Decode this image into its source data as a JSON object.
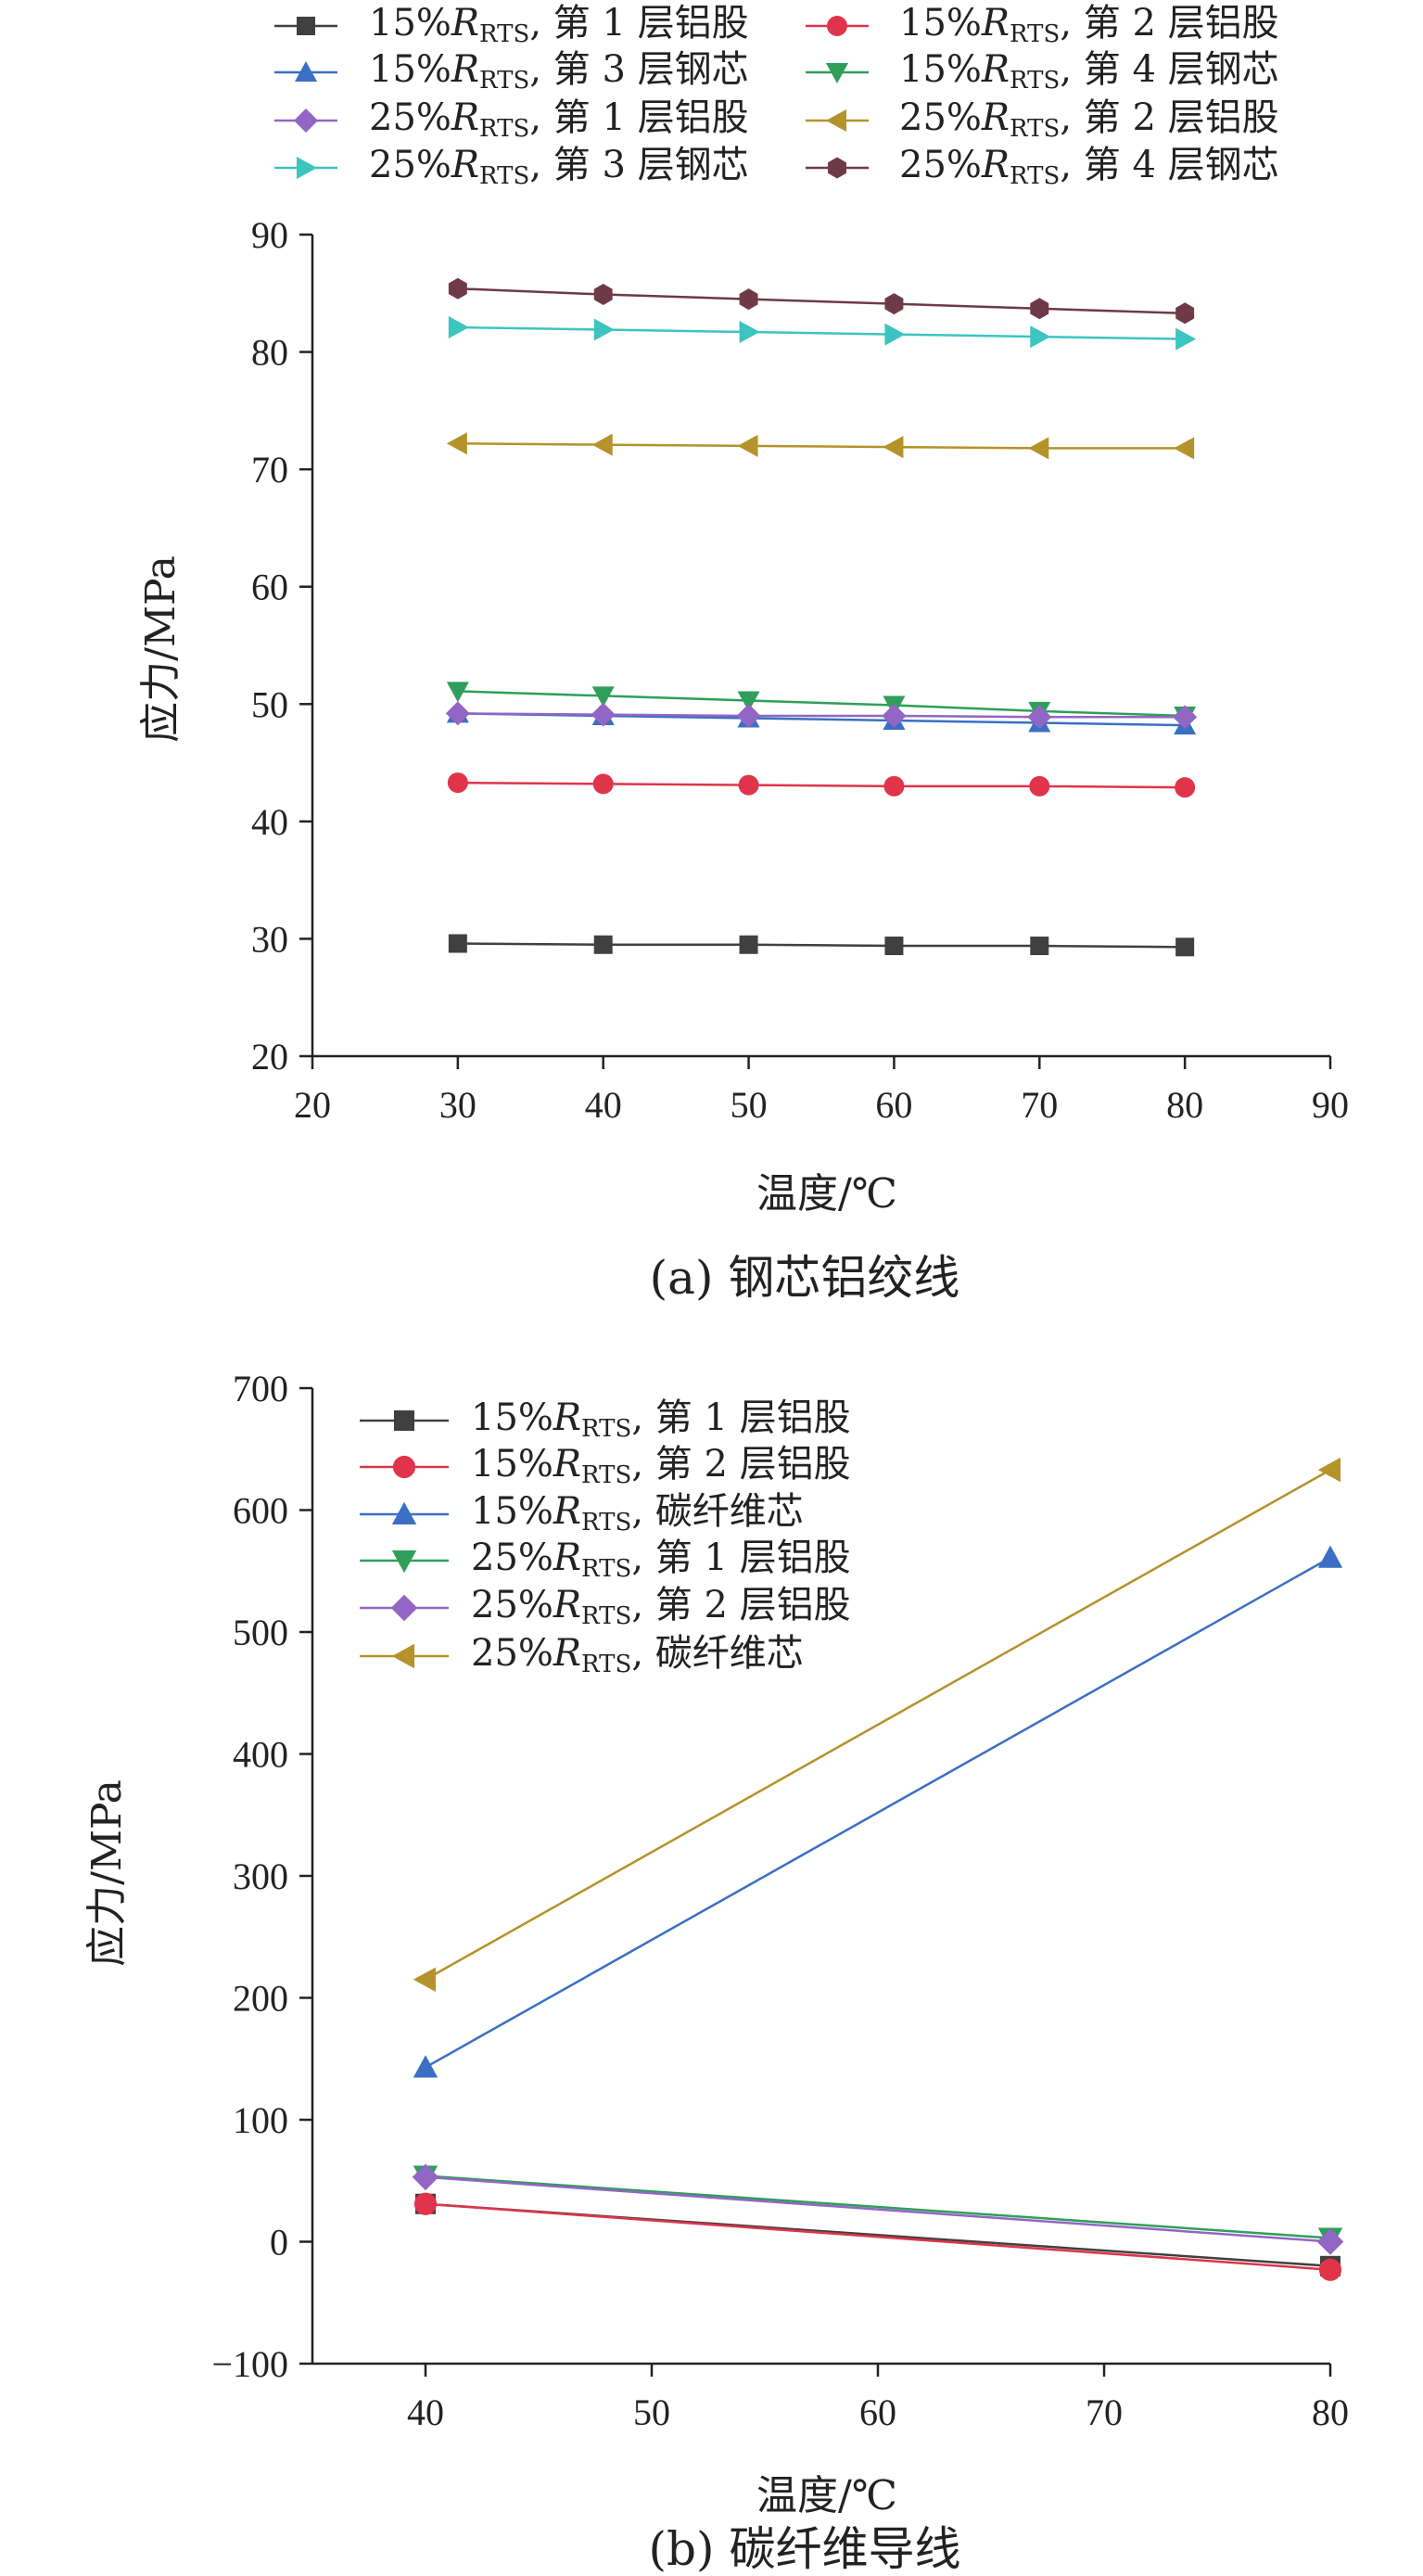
{
  "charts": [
    {
      "caption": "(a)  钢芯铝绞线",
      "chart_data": {
        "type": "line",
        "xlabel": "温度/℃",
        "ylabel": "应力/MPa",
        "xlim": [
          20,
          90
        ],
        "ylim": [
          20,
          90
        ],
        "xticks": [
          20,
          30,
          40,
          50,
          60,
          70,
          80,
          90
        ],
        "yticks": [
          20,
          30,
          40,
          50,
          60,
          70,
          80,
          90
        ],
        "legend_position": "top",
        "x": [
          30,
          40,
          50,
          60,
          70,
          80
        ],
        "series": [
          {
            "prefix": "15%",
            "sub": "RTS",
            "rest": ", 第 1 层铝股",
            "color": "#404040",
            "marker": "square",
            "values": [
              29.6,
              29.5,
              29.5,
              29.4,
              29.4,
              29.3
            ]
          },
          {
            "prefix": "15%",
            "sub": "RTS",
            "rest": ", 第 2 层铝股",
            "color": "#e0344a",
            "marker": "circle",
            "values": [
              43.3,
              43.2,
              43.1,
              43.0,
              43.0,
              42.9
            ]
          },
          {
            "prefix": "15%",
            "sub": "RTS",
            "rest": ", 第 3 层钢芯",
            "color": "#3a6fc4",
            "marker": "triangle-up",
            "values": [
              49.2,
              49.0,
              48.8,
              48.6,
              48.4,
              48.2
            ]
          },
          {
            "prefix": "15%",
            "sub": "RTS",
            "rest": ", 第 4 层钢芯",
            "color": "#2f9e5a",
            "marker": "triangle-down",
            "values": [
              51.1,
              50.7,
              50.3,
              49.9,
              49.4,
              49.0
            ]
          },
          {
            "prefix": "25%",
            "sub": "RTS",
            "rest": ", 第 1 层铝股",
            "color": "#9266c4",
            "marker": "diamond",
            "values": [
              49.2,
              49.1,
              49.0,
              49.0,
              48.9,
              48.9
            ]
          },
          {
            "prefix": "25%",
            "sub": "RTS",
            "rest": ", 第 2 层铝股",
            "color": "#b5922a",
            "marker": "triangle-left",
            "values": [
              72.2,
              72.1,
              72.0,
              71.9,
              71.8,
              71.8
            ]
          },
          {
            "prefix": "25%",
            "sub": "RTS",
            "rest": ", 第 3 层钢芯",
            "color": "#3cc4c0",
            "marker": "triangle-right",
            "values": [
              82.1,
              81.9,
              81.7,
              81.5,
              81.3,
              81.1
            ]
          },
          {
            "prefix": "25%",
            "sub": "RTS",
            "rest": ", 第 4 层钢芯",
            "color": "#6e3a48",
            "marker": "hexagon",
            "values": [
              85.4,
              84.9,
              84.5,
              84.1,
              83.7,
              83.3
            ]
          }
        ]
      }
    },
    {
      "caption": "(b)  碳纤维导线",
      "chart_data": {
        "type": "line",
        "xlabel": "温度/℃",
        "ylabel": "应力/MPa",
        "xlim": [
          35,
          80
        ],
        "ylim": [
          -100,
          700
        ],
        "xticks": [
          40,
          50,
          60,
          70,
          80
        ],
        "yticks": [
          -100,
          0,
          100,
          200,
          300,
          400,
          500,
          600,
          700
        ],
        "ytick_labels": [
          "−100",
          "0",
          "100",
          "200",
          "300",
          "400",
          "500",
          "600",
          "700"
        ],
        "legend_position": "top-left",
        "x": [
          40,
          80
        ],
        "series": [
          {
            "prefix": "15%",
            "sub": "RTS",
            "rest": ", 第 1 层铝股",
            "color": "#404040",
            "marker": "square",
            "values": [
              31,
              -20
            ]
          },
          {
            "prefix": "15%",
            "sub": "RTS",
            "rest": ", 第 2 层铝股",
            "color": "#e0344a",
            "marker": "circle",
            "values": [
              31,
              -23
            ]
          },
          {
            "prefix": "15%",
            "sub": "RTS",
            "rest": ", 碳纤维芯",
            "color": "#3a6fc4",
            "marker": "triangle-up",
            "values": [
              143,
              561
            ]
          },
          {
            "prefix": "25%",
            "sub": "RTS",
            "rest": ", 第 1 层铝股",
            "color": "#2f9e5a",
            "marker": "triangle-down",
            "values": [
              54,
              3
            ]
          },
          {
            "prefix": "25%",
            "sub": "RTS",
            "rest": ", 第 2 层铝股",
            "color": "#9266c4",
            "marker": "diamond",
            "values": [
              53,
              0
            ]
          },
          {
            "prefix": "25%",
            "sub": "RTS",
            "rest": ", 碳纤维芯",
            "color": "#b5922a",
            "marker": "triangle-left",
            "values": [
              215,
              633
            ]
          }
        ]
      }
    }
  ]
}
